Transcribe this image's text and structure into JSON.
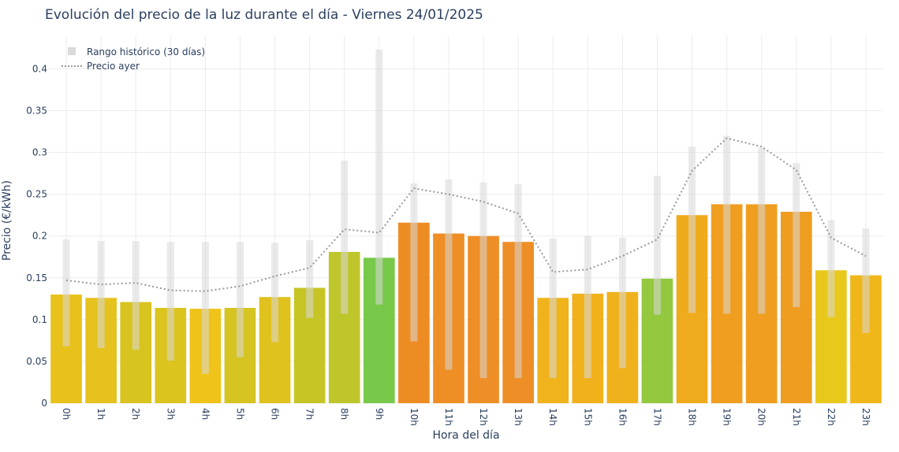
{
  "chart_data": {
    "type": "bar",
    "title": "Evolución del precio de la luz durante el día - Viernes 24/01/2025",
    "xlabel": "Hora del día",
    "ylabel": "Precio (€/kWh)",
    "ylim": [
      0,
      0.44
    ],
    "yticks": [
      0,
      0.05,
      0.1,
      0.15,
      0.2,
      0.25,
      0.3,
      0.35,
      0.4
    ],
    "ytick_labels": [
      "0",
      "0.05",
      "0.1",
      "0.15",
      "0.2",
      "0.25",
      "0.3",
      "0.35",
      "0.4"
    ],
    "grid": true,
    "legend_position": "top-left",
    "categories": [
      "0h",
      "1h",
      "2h",
      "3h",
      "4h",
      "5h",
      "6h",
      "7h",
      "8h",
      "9h",
      "10h",
      "11h",
      "12h",
      "13h",
      "14h",
      "15h",
      "16h",
      "17h",
      "18h",
      "19h",
      "20h",
      "21h",
      "22h",
      "23h"
    ],
    "series": [
      {
        "kind": "bar",
        "values": [
          0.13,
          0.126,
          0.121,
          0.114,
          0.113,
          0.114,
          0.127,
          0.138,
          0.181,
          0.174,
          0.216,
          0.203,
          0.2,
          0.193,
          0.126,
          0.131,
          0.133,
          0.149,
          0.225,
          0.238,
          0.238,
          0.229,
          0.159,
          0.153
        ],
        "colors": [
          "#e8c21a",
          "#e6c21f",
          "#d9c31f",
          "#dcc41f",
          "#f0c31a",
          "#d5c422",
          "#dfc21d",
          "#c7c526",
          "#bfc62b",
          "#78c84a",
          "#ee8c24",
          "#ee8e25",
          "#ee8e26",
          "#ee8e27",
          "#f0b31b",
          "#f0b11b",
          "#f0b21c",
          "#93c83f",
          "#f0ab1c",
          "#ef9e20",
          "#ef9e20",
          "#ef9d20",
          "#e8c81b",
          "#f0b71a"
        ]
      },
      {
        "name": "Rango histórico (30 días)",
        "kind": "range",
        "color": "#d9d9d9",
        "low": [
          0.068,
          0.066,
          0.064,
          0.051,
          0.035,
          0.055,
          0.073,
          0.102,
          0.107,
          0.118,
          0.074,
          0.04,
          0.03,
          0.03,
          0.03,
          0.03,
          0.042,
          0.106,
          0.108,
          0.107,
          0.107,
          0.115,
          0.103,
          0.084
        ],
        "high": [
          0.196,
          0.194,
          0.194,
          0.193,
          0.193,
          0.193,
          0.192,
          0.195,
          0.29,
          0.423,
          0.263,
          0.268,
          0.264,
          0.262,
          0.197,
          0.2,
          0.198,
          0.272,
          0.307,
          0.32,
          0.306,
          0.287,
          0.219,
          0.209
        ]
      },
      {
        "name": "Precio ayer",
        "kind": "line",
        "color": "#999999",
        "values": [
          0.147,
          0.142,
          0.144,
          0.135,
          0.134,
          0.14,
          0.152,
          0.162,
          0.208,
          0.204,
          0.257,
          0.25,
          0.241,
          0.227,
          0.157,
          0.16,
          0.176,
          0.196,
          0.278,
          0.317,
          0.307,
          0.279,
          0.198,
          0.176
        ]
      }
    ]
  }
}
